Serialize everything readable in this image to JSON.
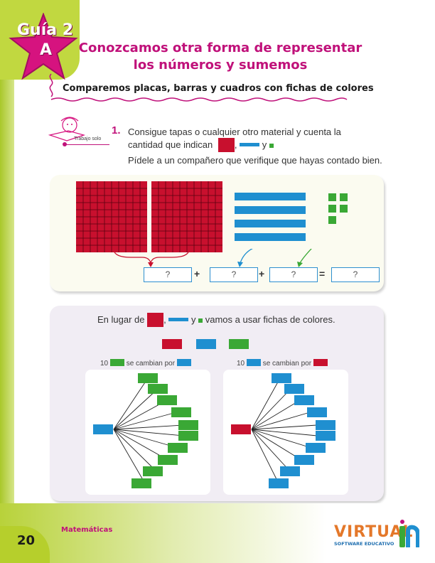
{
  "header": {
    "badge_line1": "Guía 2",
    "badge_line2": "A",
    "title_line1": "Conozcamos otra forma de representar",
    "title_line2": "los números y sumemos",
    "subtitle": "Comparemos placas, barras y cuadros con fichas de colores"
  },
  "activity": {
    "work_mode": "Trabajo solo",
    "number": "1.",
    "line1": "Consigue tapas o cualquier otro material y cuenta la",
    "line2_before": "cantidad que indican",
    "line2_comma": ",",
    "line2_and": "y",
    "line3": "Pídele a un compañero que verifique que hayas contado bien."
  },
  "equation": {
    "boxes": [
      "?",
      "?",
      "?",
      "?"
    ],
    "plus1": "+",
    "plus2": "+",
    "equals": "="
  },
  "chips_section": {
    "intro_before": "En lugar de",
    "intro_comma": ",",
    "intro_and": "y",
    "intro_after": "vamos a usar fichas de colores.",
    "left_label_num": "10",
    "left_label_text": "se cambian por",
    "right_label_num": "10",
    "right_label_text": "se cambian por"
  },
  "footer": {
    "page_number": "20",
    "subject": "Matemáticas",
    "logo_main": "VIRTUAL",
    "logo_sub": "SOFTWARE EDUCATIVO"
  },
  "colors": {
    "red": "#c8102e",
    "blue": "#1f8fd0",
    "green": "#3aa835",
    "magenta": "#c0117a",
    "lime": "#b6cf2c"
  }
}
